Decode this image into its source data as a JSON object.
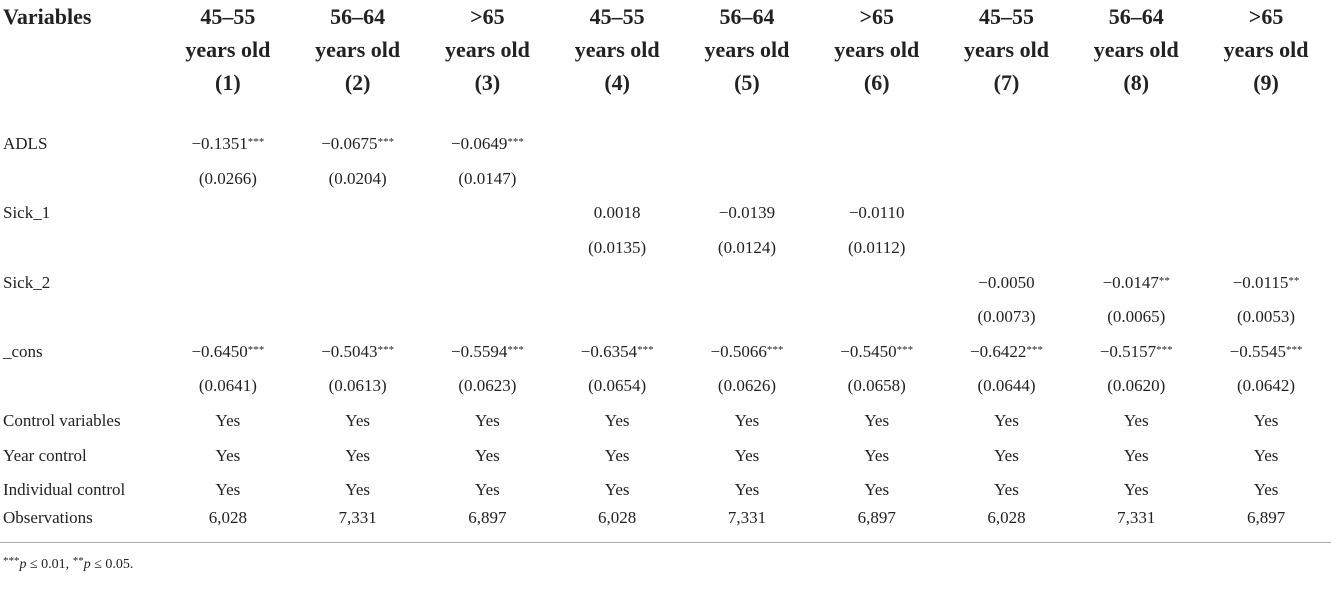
{
  "table": {
    "header": [
      "Variables",
      [
        "45–55",
        "years old",
        "(1)"
      ],
      [
        "56–64",
        "years old",
        "(2)"
      ],
      [
        ">65",
        "years old",
        "(3)"
      ],
      [
        "45–55",
        "years old",
        "(4)"
      ],
      [
        "56–64",
        "years old",
        "(5)"
      ],
      [
        ">65",
        "years old",
        "(6)"
      ],
      [
        "45–55",
        "years old",
        "(7)"
      ],
      [
        "56–64",
        "years old",
        "(8)"
      ],
      [
        ">65",
        "years old",
        "(9)"
      ]
    ],
    "rows": [
      {
        "label": "ADLS",
        "cells": [
          "−0.1351***",
          "−0.0675***",
          "−0.0649***",
          null,
          null,
          null,
          null,
          null,
          null
        ]
      },
      {
        "label": null,
        "cells": [
          "(0.0266)",
          "(0.0204)",
          "(0.0147)",
          null,
          null,
          null,
          null,
          null,
          null
        ]
      },
      {
        "label": "Sick_1",
        "cells": [
          null,
          null,
          null,
          "0.0018",
          "−0.0139",
          "−0.0110",
          null,
          null,
          null
        ]
      },
      {
        "label": null,
        "cells": [
          null,
          null,
          null,
          "(0.0135)",
          "(0.0124)",
          "(0.0112)",
          null,
          null,
          null
        ]
      },
      {
        "label": "Sick_2",
        "cells": [
          null,
          null,
          null,
          null,
          null,
          null,
          "−0.0050",
          "−0.0147**",
          "−0.0115**"
        ]
      },
      {
        "label": null,
        "cells": [
          null,
          null,
          null,
          null,
          null,
          null,
          "(0.0073)",
          "(0.0065)",
          "(0.0053)"
        ]
      },
      {
        "label": "_cons",
        "cells": [
          "−0.6450***",
          "−0.5043***",
          "−0.5594***",
          "−0.6354***",
          "−0.5066***",
          "−0.5450***",
          "−0.6422***",
          "−0.5157***",
          "−0.5545***"
        ]
      },
      {
        "label": null,
        "cells": [
          "(0.0641)",
          "(0.0613)",
          "(0.0623)",
          "(0.0654)",
          "(0.0626)",
          "(0.0658)",
          "(0.0644)",
          "(0.0620)",
          "(0.0642)"
        ]
      },
      {
        "label": "Control variables",
        "cells": [
          "Yes",
          "Yes",
          "Yes",
          "Yes",
          "Yes",
          "Yes",
          "Yes",
          "Yes",
          "Yes"
        ]
      },
      {
        "label": "Year control",
        "cells": [
          "Yes",
          "Yes",
          "Yes",
          "Yes",
          "Yes",
          "Yes",
          "Yes",
          "Yes",
          "Yes"
        ]
      },
      {
        "label": "Individual control",
        "cells": [
          "Yes",
          "Yes",
          "Yes",
          "Yes",
          "Yes",
          "Yes",
          "Yes",
          "Yes",
          "Yes"
        ]
      },
      {
        "label": "Observations",
        "cells": [
          "6,028",
          "7,331",
          "6,897",
          "6,028",
          "7,331",
          "6,897",
          "6,028",
          "7,331",
          "6,897"
        ]
      }
    ],
    "footnote": "***p ≤ 0.01, **p ≤ 0.05."
  }
}
